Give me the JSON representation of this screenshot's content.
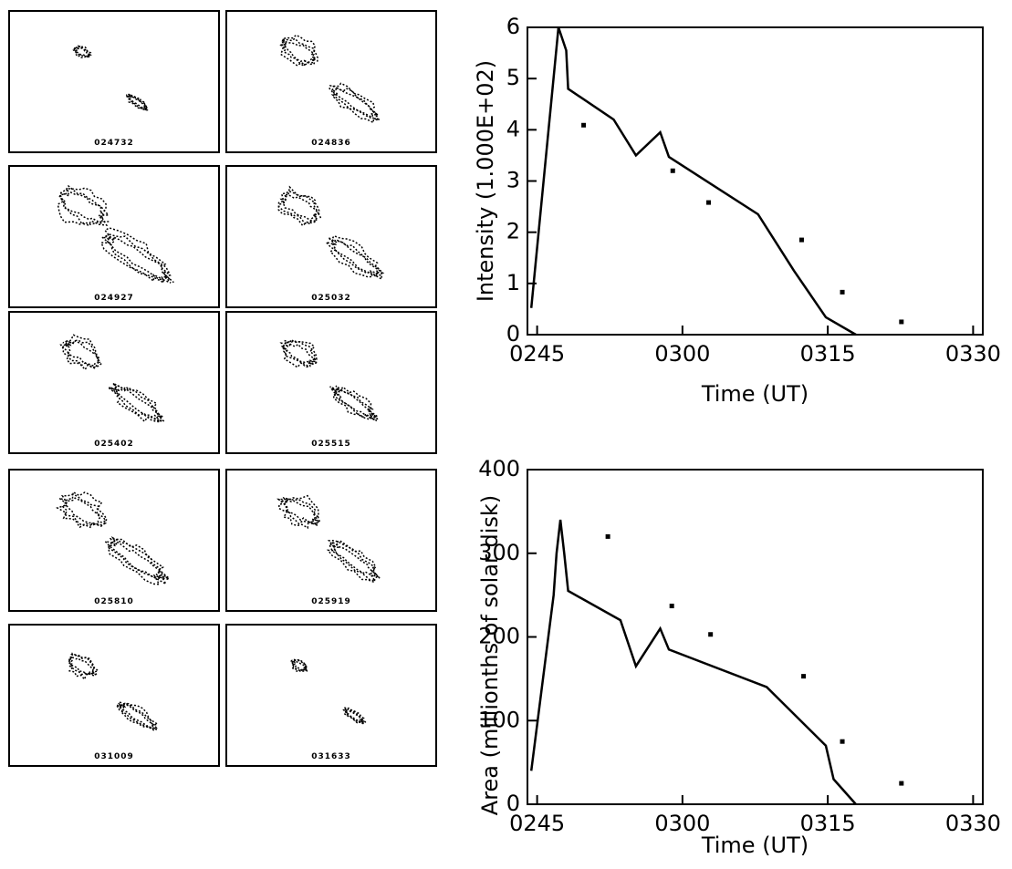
{
  "panels": {
    "labels": [
      "024732",
      "024836",
      "024927",
      "025032",
      "025402",
      "025515",
      "025810",
      "025919",
      "031009",
      "031633"
    ]
  },
  "chart_data": [
    {
      "type": "line",
      "y_label": "Intensity (1.000E+02)",
      "x_label": "Time (UT)",
      "xlim": [
        164,
        211
      ],
      "ylim": [
        0,
        6
      ],
      "xticks": [
        {
          "value": 165,
          "label": "0245"
        },
        {
          "value": 180,
          "label": "0300"
        },
        {
          "value": 195,
          "label": "0315"
        },
        {
          "value": 210,
          "label": "0330"
        }
      ],
      "yticks": [
        0,
        1,
        2,
        3,
        4,
        5,
        6
      ],
      "series": [
        {
          "style": "line",
          "color": "#000000",
          "x": [
            164.4,
            167.2,
            168.0,
            168.2,
            172.9,
            175.2,
            177.7,
            178.6,
            187.8,
            191.5,
            194.8,
            197.9
          ],
          "values": [
            0.52,
            6.0,
            5.55,
            4.8,
            4.2,
            3.5,
            3.95,
            3.47,
            2.35,
            1.25,
            0.34,
            0
          ]
        },
        {
          "style": "points",
          "color": "#000000",
          "x": [
            169.8,
            179.0,
            182.7,
            192.3,
            196.5,
            202.6
          ],
          "values": [
            4.09,
            3.2,
            2.58,
            1.85,
            0.83,
            0.25
          ]
        }
      ]
    },
    {
      "type": "line",
      "y_label": "Area (millionths of solar disk)",
      "x_label": "Time (UT)",
      "xlim": [
        164,
        211
      ],
      "ylim": [
        0,
        400
      ],
      "xticks": [
        {
          "value": 165,
          "label": "0245"
        },
        {
          "value": 180,
          "label": "0300"
        },
        {
          "value": 195,
          "label": "0315"
        },
        {
          "value": 210,
          "label": "0330"
        }
      ],
      "yticks": [
        0,
        100,
        200,
        300,
        400
      ],
      "series": [
        {
          "style": "line",
          "color": "#000000",
          "x": [
            164.4,
            166.7,
            167.0,
            167.4,
            167.8,
            168.2,
            173.6,
            175.2,
            177.7,
            178.6,
            188.7,
            194.8,
            195.6,
            197.9
          ],
          "values": [
            40,
            250,
            300,
            340,
            300,
            255,
            220,
            165,
            210,
            185,
            140,
            70,
            30,
            0
          ]
        },
        {
          "style": "points",
          "color": "#000000",
          "x": [
            172.3,
            178.9,
            182.9,
            192.5,
            196.5,
            202.6
          ],
          "values": [
            320,
            237,
            203,
            153,
            75,
            25
          ]
        }
      ]
    }
  ]
}
